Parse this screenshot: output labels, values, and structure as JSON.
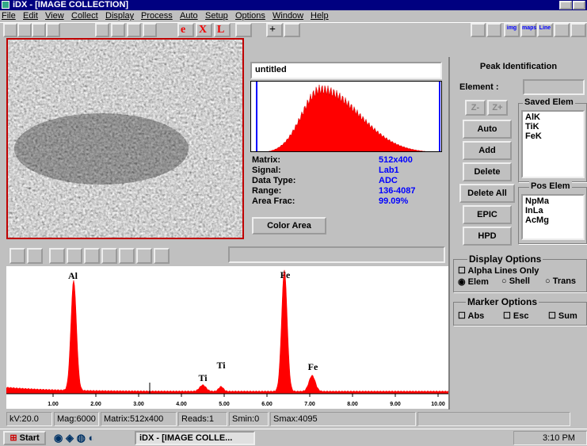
{
  "window": {
    "title": "iDX - [IMAGE COLLECTION]"
  },
  "menu": [
    "File",
    "Edit",
    "View",
    "Collect",
    "Display",
    "Process",
    "Auto",
    "Setup",
    "Options",
    "Window",
    "Help"
  ],
  "toolbar": {
    "letters": [
      "e",
      "X",
      "L",
      "+"
    ],
    "icons": [
      "img",
      "maps",
      "Line"
    ]
  },
  "histogram": {
    "name": "untitled",
    "fields": [
      {
        "label": "Matrix:",
        "value": "512x400"
      },
      {
        "label": "Signal:",
        "value": "Lab1"
      },
      {
        "label": "Data Type:",
        "value": "ADC"
      },
      {
        "label": "Range:",
        "value": "136-4087"
      },
      {
        "label": "Area Frac:",
        "value": "99.09%"
      }
    ],
    "button": "Color Area"
  },
  "peak_id": {
    "title": "Peak Identification",
    "element_label": "Element :",
    "zoom": [
      "Z-",
      "Z+"
    ],
    "buttons": [
      "Auto",
      "Add",
      "Delete",
      "Delete All",
      "EPIC",
      "HPD"
    ],
    "saved_title": "Saved Elem",
    "saved": [
      "AlK",
      "TiK",
      "FeK"
    ],
    "pos_title": "Pos Elem",
    "pos": [
      "NpMa",
      "InLa",
      "AcMg"
    ]
  },
  "display_options": {
    "title": "Display Options",
    "alpha": "Alpha Lines Only",
    "modes": [
      "Elem",
      "Shell",
      "Trans"
    ]
  },
  "marker_options": {
    "title": "Marker Options",
    "items": [
      "Abs",
      "Esc",
      "Sum"
    ]
  },
  "spectrum": {
    "peak_labels": [
      "Al",
      "Ti",
      "Ti",
      "Fe",
      "Fe"
    ],
    "xticks": [
      "1.00",
      "2.00",
      "3.00",
      "4.00",
      "5.00",
      "6.00",
      "7.00",
      "8.00",
      "9.00",
      "10.00"
    ]
  },
  "status": [
    "kV:20.0",
    "Mag:6000",
    "Matrix:512x400",
    "Reads:1",
    "Smin:0",
    "Smax:4095"
  ],
  "taskbar": {
    "start": "Start",
    "task": "iDX - [IMAGE COLLE...",
    "clock": "3:10 PM"
  }
}
